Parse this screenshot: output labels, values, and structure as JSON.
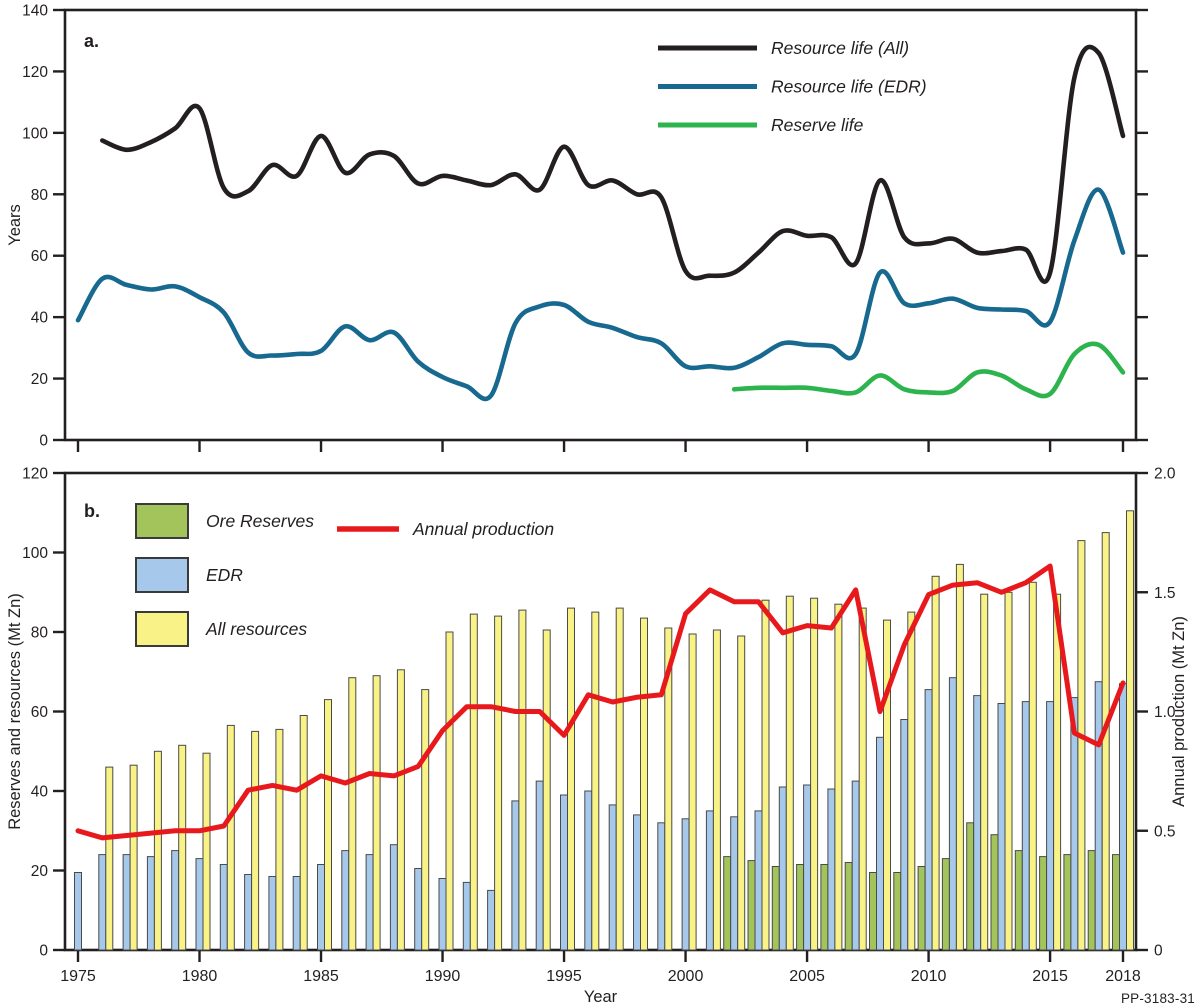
{
  "figure": {
    "code_label": "PP-3183-31",
    "background": "#ffffff",
    "years": [
      1975,
      1976,
      1977,
      1978,
      1979,
      1980,
      1981,
      1982,
      1983,
      1984,
      1985,
      1986,
      1987,
      1988,
      1989,
      1990,
      1991,
      1992,
      1993,
      1994,
      1995,
      1996,
      1997,
      1998,
      1999,
      2000,
      2001,
      2002,
      2003,
      2004,
      2005,
      2006,
      2007,
      2008,
      2009,
      2010,
      2011,
      2012,
      2013,
      2014,
      2015,
      2016,
      2017,
      2018
    ]
  },
  "chart_data": [
    {
      "id": "panel-a",
      "panel_label": "a.",
      "type": "line",
      "line_style": "smooth",
      "ylabel": "Years",
      "ylim": [
        0,
        140
      ],
      "yticks": [
        0,
        20,
        40,
        60,
        80,
        100,
        120,
        140
      ],
      "xticks": [
        1975,
        1980,
        1985,
        1990,
        1995,
        2000,
        2005,
        2010,
        2015,
        2018
      ],
      "xtick_labels_visible": false,
      "grid": false,
      "legend_position": "top-center",
      "series": [
        {
          "name": "Resource life (All)",
          "color": "#231f20",
          "values": [
            null,
            97.5,
            94.5,
            97,
            101.5,
            108,
            82,
            81,
            89.5,
            86,
            99,
            87,
            93,
            92.5,
            83.5,
            86,
            84.5,
            83,
            86.5,
            81.5,
            95.5,
            83,
            84.5,
            80,
            79,
            55,
            53.5,
            54.5,
            61,
            68,
            66.5,
            66,
            57.5,
            84.5,
            66,
            64,
            65.5,
            61,
            61.5,
            62,
            54.5,
            118,
            126,
            99
          ]
        },
        {
          "name": "Resource life (EDR)",
          "color": "#17698f",
          "values": [
            39,
            52.5,
            50.5,
            49,
            50,
            46.5,
            41.5,
            28.5,
            27.5,
            28,
            29,
            37,
            32.5,
            35,
            25.5,
            20.5,
            17.5,
            14.5,
            38,
            43.5,
            44,
            38.5,
            36.5,
            33.5,
            31.5,
            24,
            24,
            23.5,
            27,
            31.5,
            31,
            30.5,
            28,
            54.5,
            44.5,
            44.5,
            46,
            43,
            42.5,
            42,
            38.5,
            65,
            81.5,
            61
          ]
        },
        {
          "name": "Reserve life",
          "color": "#2db44e",
          "values": [
            null,
            null,
            null,
            null,
            null,
            null,
            null,
            null,
            null,
            null,
            null,
            null,
            null,
            null,
            null,
            null,
            null,
            null,
            null,
            null,
            null,
            null,
            null,
            null,
            null,
            null,
            null,
            16.5,
            17,
            17,
            17,
            16,
            15.5,
            21,
            16.5,
            15.5,
            16,
            22,
            21,
            16.5,
            15,
            28,
            31,
            22
          ]
        }
      ]
    },
    {
      "id": "panel-b",
      "panel_label": "b.",
      "type": "bar+line",
      "ylabel_left": "Reserves and resources (Mt Zn)",
      "ylabel_right": "Annual production (Mt Zn)",
      "xlabel": "Year",
      "ylim_left": [
        0,
        120
      ],
      "yticks_left": [
        0,
        20,
        40,
        60,
        80,
        100,
        120
      ],
      "ylim_right": [
        0,
        2.0
      ],
      "yticks_right": [
        {
          "value": 0,
          "label": "0"
        },
        {
          "value": 0.5,
          "label": "0.5"
        },
        {
          "value": 1.0,
          "label": "1.0"
        },
        {
          "value": 1.5,
          "label": "1.5"
        },
        {
          "value": 2.0,
          "label": "2.0"
        }
      ],
      "xticks": [
        1975,
        1980,
        1985,
        1990,
        1995,
        2000,
        2005,
        2010,
        2015,
        2018
      ],
      "xtick_labels_visible": true,
      "bar_outline_color": "#4a4a4a",
      "bar_series": [
        {
          "name": "Ore Reserves",
          "color": "#a2c45a",
          "values": [
            null,
            null,
            null,
            null,
            null,
            null,
            null,
            null,
            null,
            null,
            null,
            null,
            null,
            null,
            null,
            null,
            null,
            null,
            null,
            null,
            null,
            null,
            null,
            null,
            null,
            null,
            null,
            23.5,
            22.5,
            21,
            21.5,
            21.5,
            22,
            19.5,
            19.5,
            21,
            23,
            32,
            29,
            25,
            23.5,
            24,
            25,
            24
          ]
        },
        {
          "name": "EDR",
          "color": "#a6c8ea",
          "values": [
            19.5,
            24,
            24,
            23.5,
            25,
            23,
            21.5,
            19,
            18.5,
            18.5,
            21.5,
            25,
            24,
            26.5,
            20.5,
            18,
            17,
            15,
            37.5,
            42.5,
            39,
            40,
            36.5,
            34,
            32,
            33,
            35,
            33.5,
            35,
            41,
            41.5,
            40.5,
            42.5,
            53.5,
            58,
            65.5,
            68.5,
            64,
            62,
            62.5,
            62.5,
            63.5,
            67.5,
            67
          ]
        },
        {
          "name": "All resources",
          "color": "#f9f287",
          "values": [
            null,
            46,
            46.5,
            50,
            51.5,
            49.5,
            56.5,
            55,
            55.5,
            59,
            63,
            68.5,
            69,
            70.5,
            65.5,
            80,
            84.5,
            84,
            85.5,
            80.5,
            86,
            85,
            86,
            83.5,
            81,
            79.5,
            80.5,
            79,
            88,
            89,
            88.5,
            87,
            86,
            83,
            85,
            94,
            97,
            89.5,
            90,
            92.5,
            89.5,
            103,
            105,
            110.5
          ]
        }
      ],
      "line_series": [
        {
          "name": "Annual production",
          "color": "#e8191d",
          "axis": "right",
          "style": "straight",
          "values": [
            0.5,
            0.47,
            0.48,
            0.49,
            0.5,
            0.5,
            0.52,
            0.67,
            0.69,
            0.67,
            0.73,
            0.7,
            0.74,
            0.73,
            0.77,
            0.92,
            1.02,
            1.02,
            1.0,
            1.0,
            0.9,
            1.07,
            1.04,
            1.06,
            1.07,
            1.41,
            1.51,
            1.46,
            1.46,
            1.33,
            1.36,
            1.35,
            1.51,
            1.0,
            1.28,
            1.49,
            1.53,
            1.54,
            1.5,
            1.54,
            1.61,
            0.91,
            0.86,
            1.12
          ]
        }
      ]
    }
  ]
}
